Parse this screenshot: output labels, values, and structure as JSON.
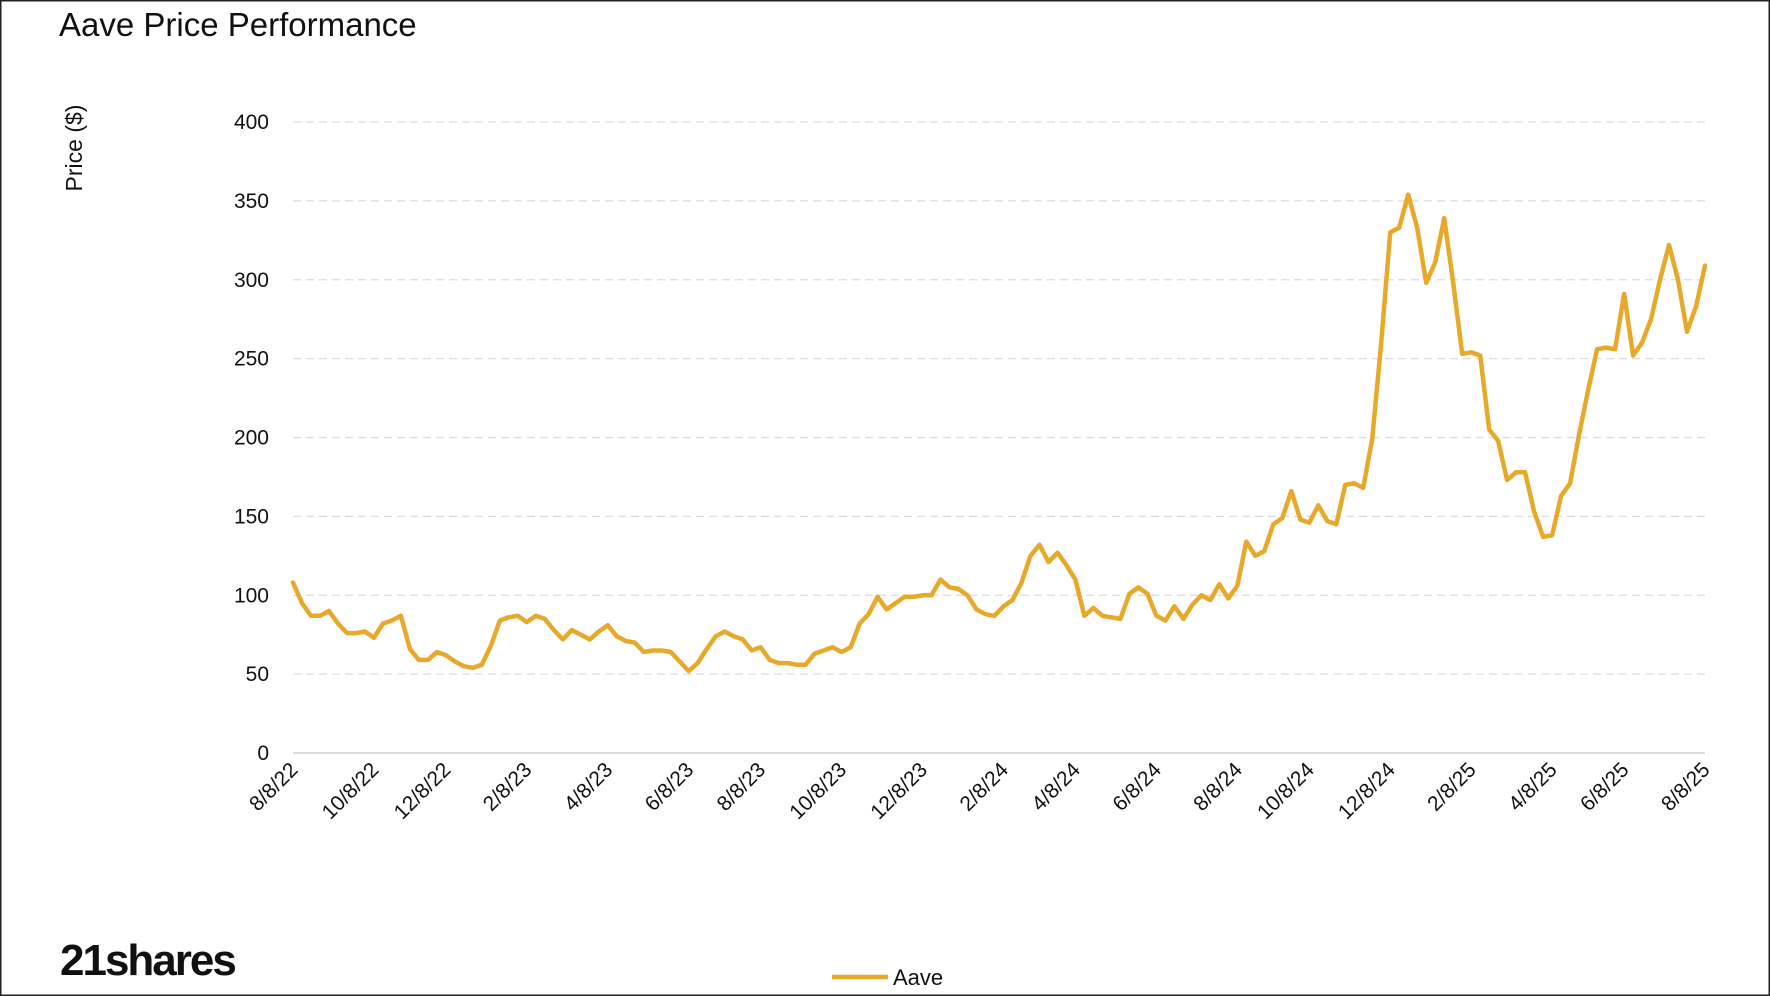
{
  "logo": "21shares",
  "chart_data": {
    "type": "line",
    "title": "Aave Price Performance",
    "y_label": "Price ($)",
    "categories": [
      "8/8/22",
      null,
      null,
      null,
      null,
      null,
      null,
      null,
      null,
      "10/8/22",
      null,
      null,
      null,
      null,
      null,
      null,
      null,
      "12/8/22",
      null,
      null,
      null,
      null,
      null,
      null,
      null,
      null,
      "2/8/23",
      null,
      null,
      null,
      null,
      null,
      null,
      null,
      null,
      "4/8/23",
      null,
      null,
      null,
      null,
      null,
      null,
      null,
      null,
      "6/8/23",
      null,
      null,
      null,
      null,
      null,
      null,
      null,
      "8/8/23",
      null,
      null,
      null,
      null,
      null,
      null,
      null,
      null,
      "10/8/23",
      null,
      null,
      null,
      null,
      null,
      null,
      null,
      null,
      "12/8/23",
      null,
      null,
      null,
      null,
      null,
      null,
      null,
      null,
      "2/8/24",
      null,
      null,
      null,
      null,
      null,
      null,
      null,
      "4/8/24",
      null,
      null,
      null,
      null,
      null,
      null,
      null,
      null,
      "6/8/24",
      null,
      null,
      null,
      null,
      null,
      null,
      null,
      null,
      "8/8/24",
      null,
      null,
      null,
      null,
      null,
      null,
      null,
      "10/8/24",
      null,
      null,
      null,
      null,
      null,
      null,
      null,
      null,
      "12/8/24",
      null,
      null,
      null,
      null,
      null,
      null,
      null,
      null,
      "2/8/25",
      null,
      null,
      null,
      null,
      null,
      null,
      null,
      null,
      "4/8/25",
      null,
      null,
      null,
      null,
      null,
      null,
      null,
      "6/8/25",
      null,
      null,
      null,
      null,
      null,
      null,
      null,
      null,
      "8/8/25"
    ],
    "series": [
      {
        "name": "Aave",
        "color": "#E8A92A",
        "values": [
          108,
          95,
          87,
          87,
          90,
          82,
          76,
          76,
          77,
          73,
          82,
          84,
          87,
          66,
          59,
          59,
          64,
          62,
          58,
          55,
          54,
          56,
          68,
          84,
          86,
          87,
          83,
          87,
          85,
          78,
          72,
          78,
          75,
          72,
          77,
          81,
          74,
          71,
          70,
          64,
          65,
          65,
          64,
          58,
          52,
          57,
          66,
          74,
          77,
          74,
          72,
          65,
          67,
          59,
          57,
          57,
          56,
          56,
          63,
          65,
          67,
          64,
          67,
          82,
          88,
          99,
          91,
          95,
          99,
          99,
          100,
          100,
          110,
          105,
          104,
          100,
          91,
          88,
          87,
          93,
          97,
          108,
          125,
          132,
          121,
          127,
          119,
          110,
          87,
          92,
          87,
          86,
          85,
          101,
          105,
          101,
          87,
          84,
          93,
          85,
          94,
          100,
          97,
          107,
          98,
          106,
          134,
          125,
          128,
          145,
          149,
          166,
          148,
          146,
          157,
          147,
          145,
          170,
          171,
          168,
          199,
          260,
          330,
          333,
          354,
          333,
          298,
          311,
          339,
          298,
          253,
          254,
          252,
          205,
          198,
          173,
          178,
          178,
          153,
          137,
          138,
          163,
          171,
          202,
          230,
          256,
          257,
          256,
          291,
          252,
          260,
          275,
          300,
          322,
          300,
          267,
          283,
          309
        ]
      }
    ],
    "ylim": [
      0,
      400
    ],
    "yticks": [
      0,
      50,
      100,
      150,
      200,
      250,
      300,
      350,
      400
    ],
    "grid": true,
    "legend": "bottom"
  }
}
